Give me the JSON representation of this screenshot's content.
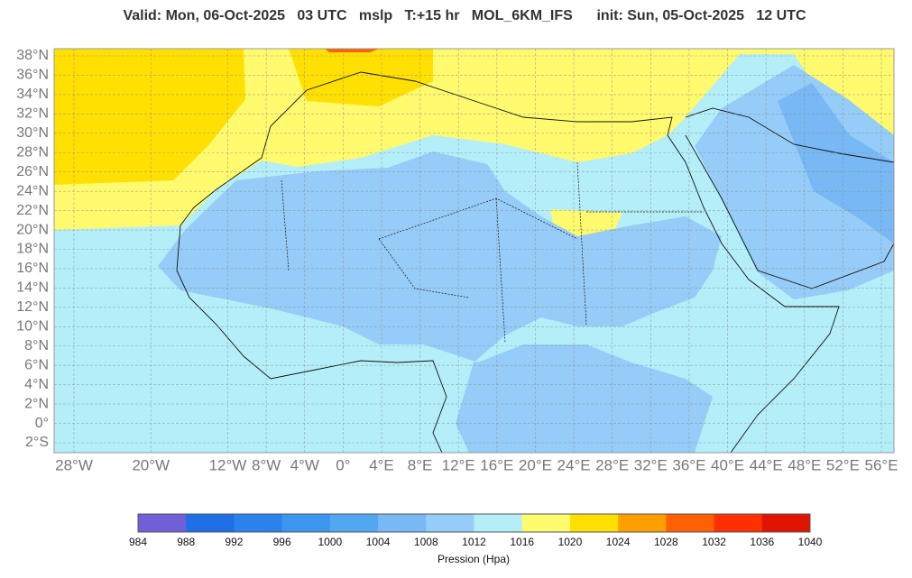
{
  "header": {
    "title": "Valid: Mon, 06-Oct-2025   03 UTC   mslp   T:+15 hr   MOL_6KM_IFS      init: Sun, 05-Oct-2025   12 UTC"
  },
  "map": {
    "lat_ticks": [
      {
        "value": 38,
        "label": "38°N"
      },
      {
        "value": 36,
        "label": "36°N"
      },
      {
        "value": 34,
        "label": "34°N"
      },
      {
        "value": 32,
        "label": "32°N"
      },
      {
        "value": 30,
        "label": "30°N"
      },
      {
        "value": 28,
        "label": "28°N"
      },
      {
        "value": 26,
        "label": "26°N"
      },
      {
        "value": 24,
        "label": "24°N"
      },
      {
        "value": 22,
        "label": "22°N"
      },
      {
        "value": 20,
        "label": "20°N"
      },
      {
        "value": 18,
        "label": "18°N"
      },
      {
        "value": 16,
        "label": "16°N"
      },
      {
        "value": 14,
        "label": "14°N"
      },
      {
        "value": 12,
        "label": "12°N"
      },
      {
        "value": 10,
        "label": "10°N"
      },
      {
        "value": 8,
        "label": "8°N"
      },
      {
        "value": 6,
        "label": "6°N"
      },
      {
        "value": 4,
        "label": "4°N"
      },
      {
        "value": 2,
        "label": "2°N"
      },
      {
        "value": 0,
        "label": "0°"
      },
      {
        "value": -2,
        "label": "2°S"
      }
    ],
    "lon_ticks": [
      {
        "value": -28,
        "label": "28°W"
      },
      {
        "value": -20,
        "label": "20°W"
      },
      {
        "value": -12,
        "label": "12°W"
      },
      {
        "value": -8,
        "label": "8°W"
      },
      {
        "value": -4,
        "label": "4°W"
      },
      {
        "value": 0,
        "label": "0°"
      },
      {
        "value": 4,
        "label": "4°E"
      },
      {
        "value": 8,
        "label": "8°E"
      },
      {
        "value": 12,
        "label": "12°E"
      },
      {
        "value": 16,
        "label": "16°E"
      },
      {
        "value": 20,
        "label": "20°E"
      },
      {
        "value": 24,
        "label": "24°E"
      },
      {
        "value": 28,
        "label": "28°E"
      },
      {
        "value": 32,
        "label": "32°E"
      },
      {
        "value": 36,
        "label": "36°E"
      },
      {
        "value": 40,
        "label": "40°E"
      },
      {
        "value": 44,
        "label": "44°E"
      },
      {
        "value": 48,
        "label": "48°E"
      },
      {
        "value": 52,
        "label": "52°E"
      },
      {
        "value": 56,
        "label": "56°E"
      }
    ]
  },
  "colorbar": {
    "ticks": [
      984,
      988,
      992,
      996,
      1000,
      1004,
      1008,
      1012,
      1016,
      1020,
      1024,
      1028,
      1032,
      1036,
      1040
    ],
    "colors": [
      "#7060d8",
      "#1e6ee6",
      "#2b82ee",
      "#3c96f0",
      "#52a8f0",
      "#78b8f4",
      "#96ccf8",
      "#b4eef8",
      "#fffa6e",
      "#ffe000",
      "#ffa000",
      "#ff6000",
      "#ff3000",
      "#e01400"
    ],
    "label": "Pression (Hpa)"
  }
}
